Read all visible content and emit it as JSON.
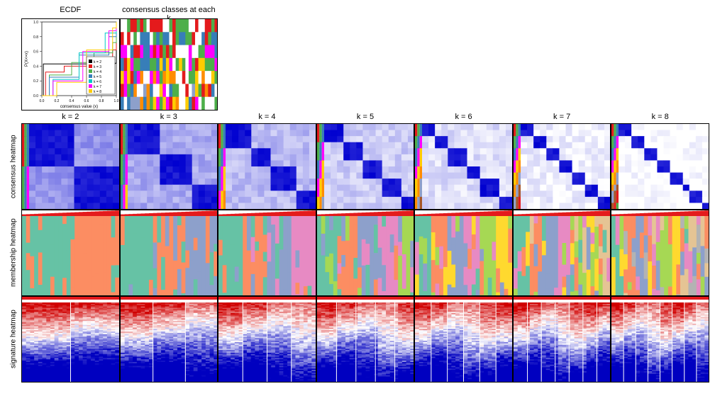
{
  "top_titles": {
    "ecdf": "ECDF",
    "consensus_classes": "consensus classes at each k"
  },
  "k_labels": [
    "k = 2",
    "k = 3",
    "k = 4",
    "k = 5",
    "k = 6",
    "k = 7",
    "k = 8"
  ],
  "row_labels": [
    "consensus heatmap",
    "membership heatmap",
    "signature heatmap"
  ],
  "ecdf": {
    "xlabel": "consensus value (x)",
    "ylabel": "P(X<=x)",
    "xlim": [
      0,
      1
    ],
    "ylim": [
      0,
      1
    ],
    "xticks": [
      0.0,
      0.2,
      0.4,
      0.6,
      0.8,
      1.0
    ],
    "yticks": [
      0.0,
      0.2,
      0.4,
      0.6,
      0.8,
      1.0
    ],
    "legend_items": [
      "k = 2",
      "k = 3",
      "k = 4",
      "k = 5",
      "k = 6",
      "k = 7",
      "k = 8"
    ],
    "legend_colors": [
      "#000000",
      "#e41a1c",
      "#4daf4a",
      "#377eb8",
      "#00c8c8",
      "#ff00ff",
      "#ffcc00"
    ],
    "curves": [
      {
        "color": "#000000",
        "x": [
          0,
          0.02,
          0.98,
          1
        ],
        "y": [
          0,
          0.43,
          0.44,
          1
        ]
      },
      {
        "color": "#e41a1c",
        "x": [
          0,
          0.05,
          0.3,
          0.6,
          0.95,
          1
        ],
        "y": [
          0,
          0.32,
          0.4,
          0.5,
          0.62,
          1
        ]
      },
      {
        "color": "#4daf4a",
        "x": [
          0,
          0.1,
          0.4,
          0.7,
          0.95,
          1
        ],
        "y": [
          0,
          0.28,
          0.45,
          0.58,
          0.72,
          1
        ]
      },
      {
        "color": "#377eb8",
        "x": [
          0,
          0.1,
          0.5,
          0.9,
          1
        ],
        "y": [
          0,
          0.25,
          0.55,
          0.8,
          1
        ]
      },
      {
        "color": "#00c8c8",
        "x": [
          0,
          0.15,
          0.5,
          0.85,
          1
        ],
        "y": [
          0,
          0.22,
          0.58,
          0.85,
          1
        ]
      },
      {
        "color": "#ff00ff",
        "x": [
          0,
          0.15,
          0.55,
          0.9,
          1
        ],
        "y": [
          0,
          0.2,
          0.6,
          0.88,
          1
        ]
      },
      {
        "color": "#ffcc00",
        "x": [
          0,
          0.2,
          0.6,
          0.95,
          1
        ],
        "y": [
          0,
          0.18,
          0.62,
          0.92,
          1
        ]
      }
    ],
    "tick_fontsize": 5,
    "label_fontsize": 6
  },
  "consensus_classes_panel": {
    "rows": 7,
    "cols": 30,
    "palette": [
      "#e41a1c",
      "#4daf4a",
      "#377eb8",
      "#ff00ff",
      "#ffcc00",
      "#ff8c00",
      "#8da0cb",
      "#ffffff"
    ],
    "seed": 7
  },
  "consensus_heatmaps": {
    "palette_low": "#ffffff",
    "palette_high": "#0000d0",
    "sidebar_colors": [
      "#e41a1c",
      "#4daf4a",
      "#377eb8",
      "#ff00ff",
      "#ffcc00",
      "#ff8c00",
      "#8da0cb",
      "#a65628"
    ],
    "k_blocks": [
      2,
      3,
      4,
      5,
      6,
      7,
      8
    ]
  },
  "membership_heatmaps": {
    "palette": [
      "#66c2a5",
      "#fc8d62",
      "#8da0cb",
      "#e78ac3",
      "#a6d854",
      "#ffd92f",
      "#e5c494",
      "#b3b3b3"
    ],
    "top_bar_color": "#e41a1c",
    "k_values": [
      2,
      3,
      4,
      5,
      6,
      7,
      8
    ]
  },
  "signature_heatmaps": {
    "color_low": "#0000c0",
    "color_mid": "#ffffff",
    "color_high": "#d00000",
    "top_bar_color": "#e41a1c",
    "k_values": [
      2,
      3,
      4,
      5,
      6,
      7,
      8
    ],
    "rows": 60
  },
  "style": {
    "background": "#ffffff",
    "border_color": "#000000",
    "font_family": "Arial",
    "title_fontsize": 11,
    "rowlabel_fontsize": 10
  }
}
